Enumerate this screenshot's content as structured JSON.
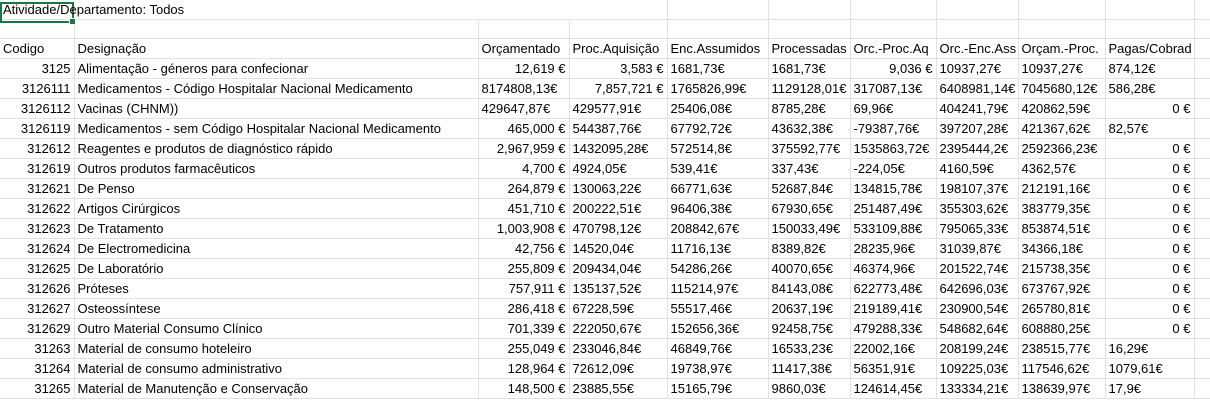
{
  "title_cell": "Atividade/Departamento: Todos",
  "headers": [
    "Codigo",
    "Designação",
    "Orçamentado",
    "Proc.Aquisição",
    "Enc.Assumidos",
    "Processadas",
    "Orc.-Proc.Aq",
    "Orc.-Enc.Ass",
    "Orçam.-Proc.",
    "Pagas/Cobrad"
  ],
  "rows": [
    {
      "codigo": "3125",
      "designacao": "Alimentação - géneros para confecionar",
      "orcamentado": "12,619 €",
      "proc_aquisicao": "3,583 €",
      "enc_assumidos": "1681,73€",
      "processadas": "1681,73€",
      "orc_proc_aq": "9,036 €",
      "orc_enc_ass": "10937,27€",
      "orcam_proc": "10937,27€",
      "pagas_cobrad": "874,12€"
    },
    {
      "codigo": "3126111",
      "designacao": "Medicamentos - Código Hospitalar Nacional Medicamento",
      "orcamentado": "8174808,13€",
      "proc_aquisicao": "7,857,721 €",
      "enc_assumidos": "1765826,99€",
      "processadas": "1129128,01€",
      "orc_proc_aq": "317087,13€",
      "orc_enc_ass": "6408981,14€",
      "orcam_proc": "7045680,12€",
      "pagas_cobrad": "586,28€"
    },
    {
      "codigo": "3126112",
      "designacao": "Vacinas (CHNM))",
      "orcamentado": "429647,87€",
      "proc_aquisicao": "429577,91€",
      "enc_assumidos": "25406,08€",
      "processadas": "8785,28€",
      "orc_proc_aq": "69,96€",
      "orc_enc_ass": "404241,79€",
      "orcam_proc": "420862,59€",
      "pagas_cobrad": "0 €"
    },
    {
      "codigo": "3126119",
      "designacao": "Medicamentos - sem Código Hospitalar Nacional Medicamento",
      "orcamentado": "465,000 €",
      "proc_aquisicao": "544387,76€",
      "enc_assumidos": "67792,72€",
      "processadas": "43632,38€",
      "orc_proc_aq": "-79387,76€",
      "orc_enc_ass": "397207,28€",
      "orcam_proc": "421367,62€",
      "pagas_cobrad": "82,57€"
    },
    {
      "codigo": "312612",
      "designacao": "Reagentes e produtos de diagnóstico rápido",
      "orcamentado": "2,967,959 €",
      "proc_aquisicao": "1432095,28€",
      "enc_assumidos": "572514,8€",
      "processadas": "375592,77€",
      "orc_proc_aq": "1535863,72€",
      "orc_enc_ass": "2395444,2€",
      "orcam_proc": "2592366,23€",
      "pagas_cobrad": "0 €"
    },
    {
      "codigo": "312619",
      "designacao": "Outros produtos farmacêuticos",
      "orcamentado": "4,700 €",
      "proc_aquisicao": "4924,05€",
      "enc_assumidos": "539,41€",
      "processadas": "337,43€",
      "orc_proc_aq": "-224,05€",
      "orc_enc_ass": "4160,59€",
      "orcam_proc": "4362,57€",
      "pagas_cobrad": "0 €"
    },
    {
      "codigo": "312621",
      "designacao": "De Penso",
      "orcamentado": "264,879 €",
      "proc_aquisicao": "130063,22€",
      "enc_assumidos": "66771,63€",
      "processadas": "52687,84€",
      "orc_proc_aq": "134815,78€",
      "orc_enc_ass": "198107,37€",
      "orcam_proc": "212191,16€",
      "pagas_cobrad": "0 €"
    },
    {
      "codigo": "312622",
      "designacao": "Artigos Cirúrgicos",
      "orcamentado": "451,710 €",
      "proc_aquisicao": "200222,51€",
      "enc_assumidos": "96406,38€",
      "processadas": "67930,65€",
      "orc_proc_aq": "251487,49€",
      "orc_enc_ass": "355303,62€",
      "orcam_proc": "383779,35€",
      "pagas_cobrad": "0 €"
    },
    {
      "codigo": "312623",
      "designacao": "De Tratamento",
      "orcamentado": "1,003,908 €",
      "proc_aquisicao": "470798,12€",
      "enc_assumidos": "208842,67€",
      "processadas": "150033,49€",
      "orc_proc_aq": "533109,88€",
      "orc_enc_ass": "795065,33€",
      "orcam_proc": "853874,51€",
      "pagas_cobrad": "0 €"
    },
    {
      "codigo": "312624",
      "designacao": "De Electromedicina",
      "orcamentado": "42,756 €",
      "proc_aquisicao": "14520,04€",
      "enc_assumidos": "11716,13€",
      "processadas": "8389,82€",
      "orc_proc_aq": "28235,96€",
      "orc_enc_ass": "31039,87€",
      "orcam_proc": "34366,18€",
      "pagas_cobrad": "0 €"
    },
    {
      "codigo": "312625",
      "designacao": "De Laboratório",
      "orcamentado": "255,809 €",
      "proc_aquisicao": "209434,04€",
      "enc_assumidos": "54286,26€",
      "processadas": "40070,65€",
      "orc_proc_aq": "46374,96€",
      "orc_enc_ass": "201522,74€",
      "orcam_proc": "215738,35€",
      "pagas_cobrad": "0 €"
    },
    {
      "codigo": "312626",
      "designacao": "Próteses",
      "orcamentado": "757,911 €",
      "proc_aquisicao": "135137,52€",
      "enc_assumidos": "115214,97€",
      "processadas": "84143,08€",
      "orc_proc_aq": "622773,48€",
      "orc_enc_ass": "642696,03€",
      "orcam_proc": "673767,92€",
      "pagas_cobrad": "0 €"
    },
    {
      "codigo": "312627",
      "designacao": "Osteossíntese",
      "orcamentado": "286,418 €",
      "proc_aquisicao": "67228,59€",
      "enc_assumidos": "55517,46€",
      "processadas": "20637,19€",
      "orc_proc_aq": "219189,41€",
      "orc_enc_ass": "230900,54€",
      "orcam_proc": "265780,81€",
      "pagas_cobrad": "0 €"
    },
    {
      "codigo": "312629",
      "designacao": "Outro Material Consumo Clínico",
      "orcamentado": "701,339 €",
      "proc_aquisicao": "222050,67€",
      "enc_assumidos": "152656,36€",
      "processadas": "92458,75€",
      "orc_proc_aq": "479288,33€",
      "orc_enc_ass": "548682,64€",
      "orcam_proc": "608880,25€",
      "pagas_cobrad": "0 €"
    },
    {
      "codigo": "31263",
      "designacao": "Material de consumo hoteleiro",
      "orcamentado": "255,049 €",
      "proc_aquisicao": "233046,84€",
      "enc_assumidos": "46849,76€",
      "processadas": "16533,23€",
      "orc_proc_aq": "22002,16€",
      "orc_enc_ass": "208199,24€",
      "orcam_proc": "238515,77€",
      "pagas_cobrad": "16,29€"
    },
    {
      "codigo": "31264",
      "designacao": "Material de consumo administrativo",
      "orcamentado": "128,964 €",
      "proc_aquisicao": "72612,09€",
      "enc_assumidos": "19738,97€",
      "processadas": "11417,38€",
      "orc_proc_aq": "56351,91€",
      "orc_enc_ass": "109225,03€",
      "orcam_proc": "117546,62€",
      "pagas_cobrad": "1079,61€"
    },
    {
      "codigo": "31265",
      "designacao": "Material de Manutenção e Conservação",
      "orcamentado": "148,500 €",
      "proc_aquisicao": "23885,55€",
      "enc_assumidos": "15165,79€",
      "processadas": "9860,03€",
      "orc_proc_aq": "124614,45€",
      "orc_enc_ass": "133334,21€",
      "orcam_proc": "138639,97€",
      "pagas_cobrad": "17,9€"
    }
  ],
  "alignment": {
    "orcamentado": [
      "right",
      "left",
      "left",
      "right",
      "right",
      "right",
      "right",
      "right",
      "right",
      "right",
      "right",
      "right",
      "right",
      "right",
      "right",
      "right",
      "right"
    ],
    "proc_aquisicao": [
      "right",
      "right",
      "left",
      "left",
      "left",
      "left",
      "left",
      "left",
      "left",
      "left",
      "left",
      "left",
      "left",
      "left",
      "left",
      "left",
      "left"
    ],
    "orc_proc_aq": [
      "right",
      "left",
      "left",
      "left",
      "left",
      "left",
      "left",
      "left",
      "left",
      "left",
      "left",
      "left",
      "left",
      "left",
      "left",
      "left",
      "left"
    ],
    "pagas_cobrad": [
      "left",
      "left",
      "right",
      "left",
      "right",
      "right",
      "right",
      "right",
      "right",
      "right",
      "right",
      "right",
      "right",
      "right",
      "left",
      "left",
      "left"
    ]
  },
  "colors": {
    "gridline": "#e1e1e1",
    "selection": "#217346"
  }
}
